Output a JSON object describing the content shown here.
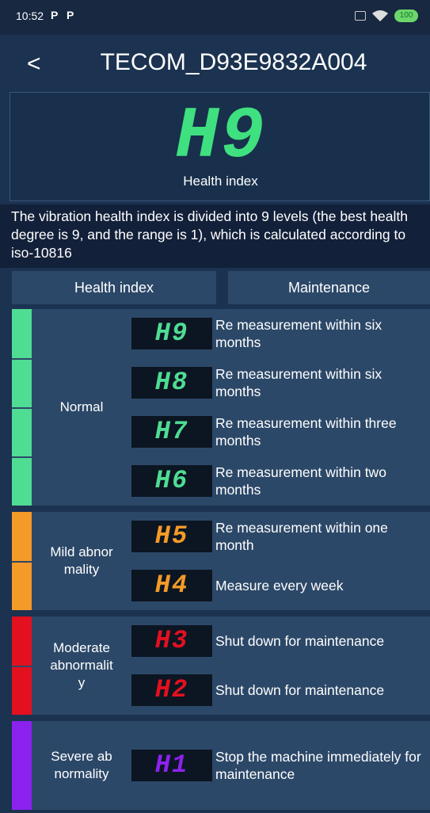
{
  "status": {
    "time": "10:52",
    "icons": [
      "P",
      "P"
    ],
    "battery": "100"
  },
  "header": {
    "back": "<",
    "title": "TECOM_D93E9832A004"
  },
  "hero": {
    "code": "H9",
    "label": "Health index"
  },
  "description": "The vibration health index is divided into 9 levels (the best health degree is 9, and the range is 1), which is calculated according to iso-10816",
  "table": {
    "headers": [
      "Health index",
      "Maintenance"
    ],
    "groups": [
      {
        "label": [
          "Normal"
        ],
        "color": "#4fdc93",
        "rows": [
          {
            "code": "H9",
            "text": "Re measurement within six months"
          },
          {
            "code": "H8",
            "text": "Re measurement within six months"
          },
          {
            "code": "H7",
            "text": "Re measurement within three months"
          },
          {
            "code": "H6",
            "text": "Re measurement within two months"
          }
        ]
      },
      {
        "label": [
          "Mild abnor",
          "mality"
        ],
        "color": "#f39a28",
        "rows": [
          {
            "code": "H5",
            "text": "Re measurement within one month"
          },
          {
            "code": "H4",
            "text": "Measure every week"
          }
        ]
      },
      {
        "label": [
          "Moderate",
          "abnormalit",
          "y"
        ],
        "color": "#e3101f",
        "rows": [
          {
            "code": "H3",
            "text": "Shut down for maintenance"
          },
          {
            "code": "H2",
            "text": "Shut down for maintenance"
          }
        ]
      },
      {
        "label": [
          "Severe ab",
          "normality"
        ],
        "color": "#8b22ee",
        "rows": [
          {
            "code": "H1",
            "text": "Stop the machine immediately for maintenance"
          }
        ]
      }
    ]
  }
}
